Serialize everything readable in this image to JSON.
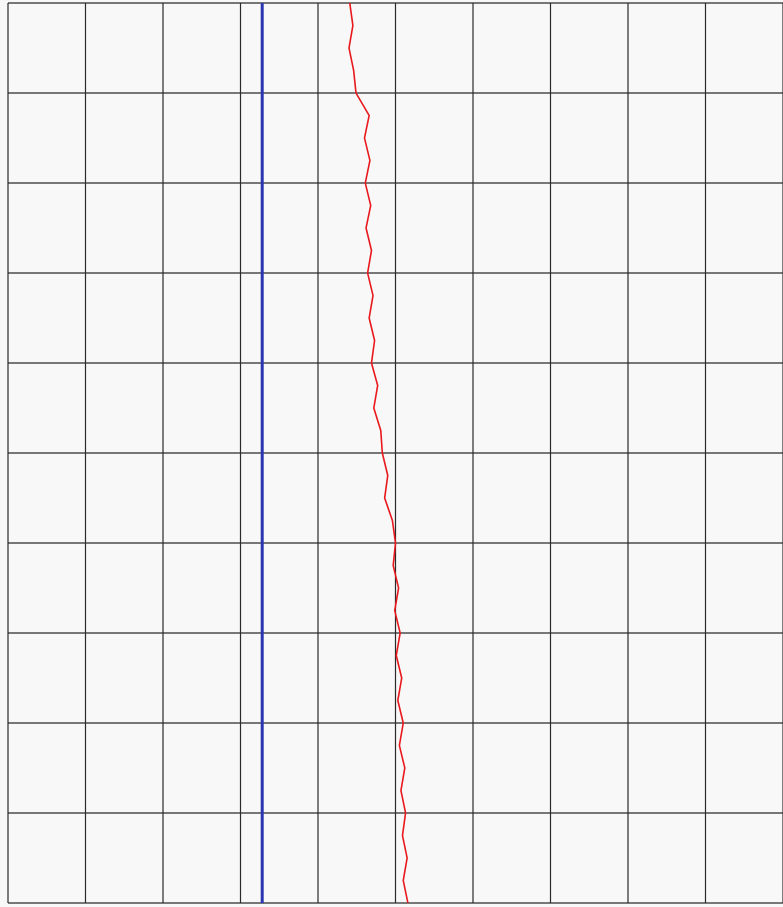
{
  "chart_data": {
    "type": "line",
    "orientation": "vertical",
    "y_inverted": true,
    "xlim": [
      0,
      10
    ],
    "ylim": [
      0,
      10
    ],
    "xticks": [
      0,
      1,
      2,
      3,
      4,
      5,
      6,
      7,
      8,
      9,
      10
    ],
    "yticks": [
      0,
      1,
      2,
      3,
      4,
      5,
      6,
      7,
      8,
      9,
      10
    ],
    "grid": true,
    "series": [
      {
        "color": "#2a35b0",
        "width": 3,
        "y": [
          0,
          10
        ],
        "values": [
          3.28,
          3.28
        ]
      },
      {
        "color": "#e8181c",
        "width": 1.6,
        "y": [
          0,
          0.25,
          0.5,
          0.75,
          1,
          1.25,
          1.5,
          1.75,
          2,
          2.25,
          2.5,
          2.75,
          3,
          3.25,
          3.5,
          3.75,
          4,
          4.25,
          4.5,
          4.75,
          5,
          5.25,
          5.5,
          5.75,
          6,
          6.25,
          6.5,
          6.75,
          7,
          7.25,
          7.5,
          7.75,
          8,
          8.25,
          8.5,
          8.75,
          9,
          9.25,
          9.5,
          9.75,
          10
        ],
        "values": [
          4.41,
          4.45,
          4.4,
          4.46,
          4.49,
          4.66,
          4.6,
          4.67,
          4.61,
          4.68,
          4.62,
          4.69,
          4.64,
          4.71,
          4.66,
          4.73,
          4.69,
          4.77,
          4.72,
          4.81,
          4.83,
          4.9,
          4.86,
          4.96,
          5.0,
          4.97,
          5.04,
          4.99,
          5.06,
          5.01,
          5.08,
          5.03,
          5.1,
          5.05,
          5.12,
          5.07,
          5.13,
          5.09,
          5.15,
          5.1,
          5.16
        ]
      }
    ]
  }
}
